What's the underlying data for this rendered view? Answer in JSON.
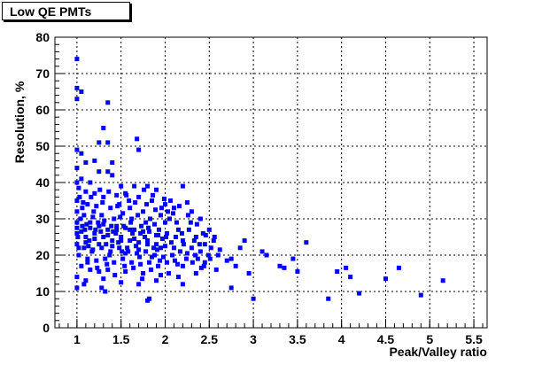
{
  "title": "Low QE PMTs",
  "chart_data": {
    "type": "scatter",
    "title": "Low QE PMTs",
    "xlabel": "Peak/Valley ratio",
    "ylabel": "Resolution, %",
    "xlim": [
      0.75,
      5.65
    ],
    "ylim": [
      0,
      80
    ],
    "xticks": [
      "1",
      "1.5",
      "2",
      "2.5",
      "3",
      "3.5",
      "4",
      "4.5",
      "5",
      "5.5"
    ],
    "yticks": [
      "0",
      "10",
      "20",
      "30",
      "40",
      "50",
      "60",
      "70",
      "80"
    ],
    "grid": true,
    "marker_color": "#0000ff",
    "points": [
      [
        1.0,
        74.0
      ],
      [
        1.0,
        66.0
      ],
      [
        1.05,
        65.0
      ],
      [
        1.0,
        63.0
      ],
      [
        1.35,
        62.0
      ],
      [
        1.3,
        55.0
      ],
      [
        1.25,
        51.0
      ],
      [
        1.35,
        51.0
      ],
      [
        1.68,
        52.0
      ],
      [
        1.7,
        49.0
      ],
      [
        1.0,
        49.0
      ],
      [
        1.05,
        48.0
      ],
      [
        1.2,
        46.0
      ],
      [
        1.1,
        45.5
      ],
      [
        1.4,
        45.5
      ],
      [
        1.0,
        44.0
      ],
      [
        1.25,
        43.0
      ],
      [
        1.35,
        43.0
      ],
      [
        1.05,
        41.0
      ],
      [
        1.15,
        40.0
      ],
      [
        1.4,
        42.0
      ],
      [
        1.5,
        39.0
      ],
      [
        1.65,
        39.0
      ],
      [
        1.8,
        39.0
      ],
      [
        1.9,
        38.0
      ],
      [
        2.2,
        39.0
      ],
      [
        1.02,
        38.5
      ],
      [
        1.1,
        37.5
      ],
      [
        1.2,
        37.0
      ],
      [
        1.3,
        36.0
      ],
      [
        1.45,
        36.5
      ],
      [
        1.55,
        37.0
      ],
      [
        1.7,
        36.0
      ],
      [
        1.85,
        35.0
      ],
      [
        2.0,
        34.0
      ],
      [
        2.1,
        33.0
      ],
      [
        2.25,
        34.5
      ],
      [
        1.0,
        35.0
      ],
      [
        1.12,
        34.0
      ],
      [
        1.22,
        33.5
      ],
      [
        1.38,
        33.0
      ],
      [
        1.48,
        34.0
      ],
      [
        1.6,
        33.0
      ],
      [
        1.75,
        32.0
      ],
      [
        1.95,
        31.0
      ],
      [
        2.05,
        30.0
      ],
      [
        2.3,
        32.0
      ],
      [
        2.4,
        30.0
      ],
      [
        1.0,
        32.0
      ],
      [
        1.08,
        31.0
      ],
      [
        1.18,
        30.5
      ],
      [
        1.28,
        31.0
      ],
      [
        1.42,
        30.0
      ],
      [
        1.52,
        31.5
      ],
      [
        1.62,
        30.0
      ],
      [
        1.78,
        29.0
      ],
      [
        1.88,
        28.5
      ],
      [
        2.0,
        29.0
      ],
      [
        2.15,
        27.0
      ],
      [
        2.5,
        27.0
      ],
      [
        1.0,
        29.0
      ],
      [
        1.06,
        28.0
      ],
      [
        1.15,
        27.5
      ],
      [
        1.25,
        28.0
      ],
      [
        1.35,
        27.0
      ],
      [
        1.45,
        28.0
      ],
      [
        1.55,
        27.5
      ],
      [
        1.65,
        27.0
      ],
      [
        1.72,
        26.0
      ],
      [
        1.82,
        26.5
      ],
      [
        1.92,
        25.5
      ],
      [
        2.02,
        26.0
      ],
      [
        2.12,
        25.0
      ],
      [
        2.2,
        24.0
      ],
      [
        2.35,
        25.0
      ],
      [
        2.45,
        23.0
      ],
      [
        1.0,
        26.0
      ],
      [
        1.1,
        25.0
      ],
      [
        1.2,
        24.5
      ],
      [
        1.3,
        25.0
      ],
      [
        1.4,
        24.0
      ],
      [
        1.5,
        25.0
      ],
      [
        1.6,
        24.0
      ],
      [
        1.7,
        23.5
      ],
      [
        1.8,
        24.0
      ],
      [
        1.9,
        23.0
      ],
      [
        2.0,
        22.5
      ],
      [
        2.1,
        22.0
      ],
      [
        2.3,
        22.0
      ],
      [
        2.55,
        24.0
      ],
      [
        1.0,
        23.0
      ],
      [
        1.08,
        22.0
      ],
      [
        1.18,
        21.5
      ],
      [
        1.28,
        22.0
      ],
      [
        1.38,
        21.0
      ],
      [
        1.48,
        22.0
      ],
      [
        1.58,
        21.0
      ],
      [
        1.68,
        20.5
      ],
      [
        1.78,
        21.0
      ],
      [
        1.88,
        20.0
      ],
      [
        1.98,
        19.5
      ],
      [
        2.08,
        20.0
      ],
      [
        2.25,
        20.5
      ],
      [
        2.4,
        21.0
      ],
      [
        1.02,
        20.0
      ],
      [
        1.12,
        19.0
      ],
      [
        1.22,
        18.5
      ],
      [
        1.32,
        19.0
      ],
      [
        1.42,
        18.0
      ],
      [
        1.52,
        19.0
      ],
      [
        1.62,
        18.0
      ],
      [
        1.72,
        17.5
      ],
      [
        1.82,
        18.0
      ],
      [
        1.92,
        17.0
      ],
      [
        2.02,
        18.0
      ],
      [
        2.2,
        17.0
      ],
      [
        2.45,
        18.0
      ],
      [
        2.6,
        20.0
      ],
      [
        2.75,
        19.0
      ],
      [
        2.9,
        24.0
      ],
      [
        3.1,
        21.0
      ],
      [
        3.3,
        17.0
      ],
      [
        3.5,
        15.5
      ],
      [
        3.6,
        23.5
      ],
      [
        3.45,
        19.0
      ],
      [
        2.8,
        17.0
      ],
      [
        2.95,
        15.0
      ],
      [
        1.05,
        17.0
      ],
      [
        1.15,
        16.0
      ],
      [
        1.25,
        15.5
      ],
      [
        1.35,
        16.0
      ],
      [
        1.55,
        15.5
      ],
      [
        1.75,
        15.0
      ],
      [
        1.95,
        14.5
      ],
      [
        2.15,
        14.0
      ],
      [
        2.35,
        15.0
      ],
      [
        1.0,
        14.0
      ],
      [
        1.1,
        13.0
      ],
      [
        1.3,
        13.5
      ],
      [
        1.5,
        12.5
      ],
      [
        1.7,
        12.0
      ],
      [
        1.9,
        13.0
      ],
      [
        2.2,
        12.0
      ],
      [
        2.75,
        11.0
      ],
      [
        1.0,
        11.0
      ],
      [
        1.08,
        12.0
      ],
      [
        1.28,
        11.0
      ],
      [
        1.32,
        10.0
      ],
      [
        1.82,
        8.0
      ],
      [
        1.8,
        7.5
      ],
      [
        3.0,
        8.0
      ],
      [
        3.85,
        8.0
      ],
      [
        3.95,
        15.5
      ],
      [
        4.05,
        16.5
      ],
      [
        4.1,
        14.0
      ],
      [
        4.2,
        9.5
      ],
      [
        4.5,
        13.5
      ],
      [
        4.65,
        16.5
      ],
      [
        4.9,
        9.0
      ],
      [
        5.15,
        13.0
      ],
      [
        1.0,
        40.0
      ],
      [
        1.03,
        36.0
      ],
      [
        1.06,
        33.0
      ],
      [
        1.09,
        27.0
      ],
      [
        1.14,
        24.0
      ],
      [
        1.17,
        21.0
      ],
      [
        1.24,
        29.0
      ],
      [
        1.27,
        26.5
      ],
      [
        1.33,
        23.0
      ],
      [
        1.37,
        20.0
      ],
      [
        1.44,
        26.0
      ],
      [
        1.47,
        23.5
      ],
      [
        1.53,
        28.0
      ],
      [
        1.57,
        22.0
      ],
      [
        1.63,
        26.0
      ],
      [
        1.67,
        22.5
      ],
      [
        1.73,
        28.0
      ],
      [
        1.77,
        25.0
      ],
      [
        1.83,
        30.0
      ],
      [
        1.87,
        22.0
      ],
      [
        1.93,
        27.0
      ],
      [
        1.97,
        24.5
      ],
      [
        2.03,
        32.0
      ],
      [
        2.07,
        23.5
      ],
      [
        2.13,
        29.0
      ],
      [
        2.17,
        21.0
      ],
      [
        2.27,
        27.0
      ],
      [
        2.33,
        24.0
      ],
      [
        2.37,
        19.0
      ],
      [
        2.43,
        26.0
      ],
      [
        2.52,
        22.0
      ],
      [
        2.58,
        16.0
      ],
      [
        1.04,
        30.0
      ],
      [
        1.11,
        28.5
      ],
      [
        1.19,
        32.0
      ],
      [
        1.29,
        34.5
      ],
      [
        1.39,
        28.0
      ],
      [
        1.49,
        30.5
      ],
      [
        1.59,
        35.0
      ],
      [
        1.69,
        31.0
      ],
      [
        1.79,
        34.0
      ],
      [
        1.89,
        32.5
      ],
      [
        1.99,
        35.5
      ],
      [
        2.09,
        31.5
      ],
      [
        2.19,
        26.0
      ],
      [
        2.29,
        29.0
      ],
      [
        2.39,
        23.0
      ],
      [
        2.49,
        20.0
      ],
      [
        1.01,
        25.0
      ],
      [
        1.13,
        22.5
      ],
      [
        1.21,
        27.0
      ],
      [
        1.31,
        29.5
      ],
      [
        1.41,
        26.5
      ],
      [
        1.51,
        21.0
      ],
      [
        1.61,
        29.0
      ],
      [
        1.71,
        19.5
      ],
      [
        1.81,
        27.5
      ],
      [
        1.91,
        21.5
      ],
      [
        2.01,
        25.0
      ],
      [
        2.11,
        18.5
      ],
      [
        2.21,
        23.0
      ],
      [
        2.31,
        18.0
      ],
      [
        2.41,
        16.5
      ],
      [
        2.51,
        19.0
      ],
      [
        1.07,
        34.5
      ],
      [
        1.16,
        36.0
      ],
      [
        1.26,
        38.0
      ],
      [
        1.36,
        37.5
      ],
      [
        1.46,
        33.5
      ],
      [
        1.56,
        36.5
      ],
      [
        1.66,
        34.5
      ],
      [
        1.76,
        38.0
      ],
      [
        1.86,
        36.5
      ],
      [
        1.96,
        33.0
      ],
      [
        2.06,
        35.0
      ],
      [
        2.16,
        33.5
      ],
      [
        2.26,
        31.0
      ],
      [
        2.36,
        28.5
      ],
      [
        2.46,
        25.5
      ],
      [
        2.56,
        25.0
      ],
      [
        1.02,
        22.0
      ],
      [
        1.12,
        18.0
      ],
      [
        1.23,
        16.5
      ],
      [
        1.34,
        17.5
      ],
      [
        1.43,
        14.5
      ],
      [
        1.54,
        17.0
      ],
      [
        1.64,
        16.5
      ],
      [
        1.74,
        13.5
      ],
      [
        1.84,
        16.0
      ],
      [
        1.94,
        18.5
      ],
      [
        2.04,
        15.0
      ],
      [
        2.14,
        17.5
      ],
      [
        2.24,
        19.0
      ],
      [
        2.34,
        20.0
      ],
      [
        2.44,
        17.0
      ],
      [
        2.62,
        21.5
      ],
      [
        2.7,
        18.5
      ],
      [
        2.85,
        22.0
      ],
      [
        3.15,
        20.0
      ],
      [
        3.35,
        16.5
      ],
      [
        1.0,
        27.5
      ],
      [
        1.05,
        26.5
      ],
      [
        1.1,
        23.5
      ],
      [
        1.15,
        29.0
      ],
      [
        1.2,
        26.0
      ],
      [
        1.25,
        23.0
      ],
      [
        1.3,
        28.5
      ],
      [
        1.35,
        25.5
      ],
      [
        1.4,
        22.5
      ],
      [
        1.45,
        27.0
      ],
      [
        1.5,
        24.0
      ],
      [
        1.55,
        20.5
      ],
      [
        1.6,
        27.0
      ],
      [
        1.65,
        24.5
      ],
      [
        1.7,
        21.5
      ],
      [
        1.75,
        26.5
      ],
      [
        1.8,
        23.0
      ],
      [
        1.85,
        19.5
      ],
      [
        1.9,
        25.5
      ],
      [
        1.95,
        22.0
      ]
    ]
  }
}
